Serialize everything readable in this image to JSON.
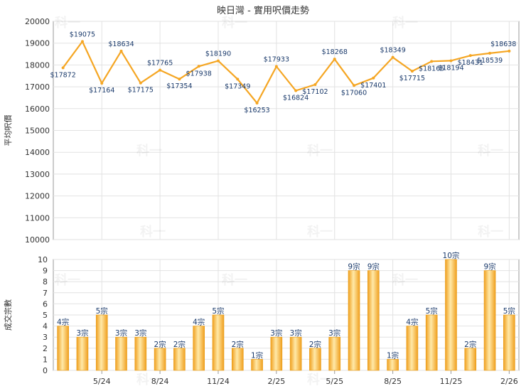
{
  "title": "映日灣 - 實用呎價走勢",
  "watermark": "科一",
  "colors": {
    "series": "#F5A623",
    "bar_light": "#FFE9A8",
    "bar_dark": "#F0A020",
    "grid": "#E2E2E2",
    "axis": "#999999"
  },
  "chart_data": [
    {
      "type": "line",
      "ylabel": "平均呎價",
      "ylim": [
        10000,
        20000
      ],
      "yticks": [
        "10000",
        "11000",
        "12000",
        "13000",
        "14000",
        "15000",
        "16000",
        "17000",
        "18000",
        "19000",
        "20000"
      ],
      "grid": true,
      "point_labels": [
        "$17872",
        "$19075",
        "$17164",
        "$18634",
        "$17175",
        "$17765",
        "$17354",
        "$17938",
        "$18190",
        "$17349",
        "$16253",
        "$17933",
        "$16824",
        "$17102",
        "$18268",
        "$17060",
        "$17401",
        "$18349",
        "$17715",
        "$18165",
        "$18194",
        "$18431",
        "$18539",
        "$18638"
      ],
      "values": [
        17872,
        19075,
        17164,
        18634,
        17175,
        17765,
        17354,
        17938,
        18190,
        17349,
        16253,
        17933,
        16824,
        17102,
        18268,
        17060,
        17401,
        18349,
        17715,
        18165,
        18194,
        18431,
        18539,
        18638
      ]
    },
    {
      "type": "bar",
      "ylabel": "成交宗數",
      "ylim": [
        0,
        10
      ],
      "yticks": [
        "0",
        "1",
        "2",
        "3",
        "4",
        "5",
        "6",
        "7",
        "8",
        "9",
        "10"
      ],
      "grid": true,
      "x_tick_labels": [
        "5/24",
        "8/24",
        "11/24",
        "2/25",
        "5/25",
        "8/25",
        "11/25",
        "2/26"
      ],
      "bar_labels": [
        "4宗",
        "3宗",
        "5宗",
        "3宗",
        "3宗",
        "2宗",
        "2宗",
        "4宗",
        "5宗",
        "2宗",
        "1宗",
        "3宗",
        "3宗",
        "2宗",
        "3宗",
        "9宗",
        "9宗",
        "1宗",
        "4宗",
        "5宗",
        "10宗",
        "2宗",
        "9宗",
        "5宗"
      ],
      "values": [
        4,
        3,
        5,
        3,
        3,
        2,
        2,
        4,
        5,
        2,
        1,
        3,
        3,
        2,
        3,
        9,
        9,
        1,
        4,
        5,
        10,
        2,
        9,
        5
      ]
    }
  ]
}
